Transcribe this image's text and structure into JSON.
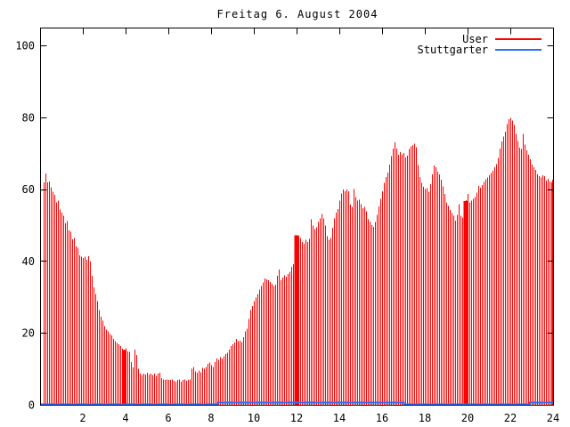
{
  "title": "Freitag 6. August 2004",
  "colors": {
    "background": "#ffffff",
    "axis": "#000000",
    "user": "#ff0000",
    "stuttgarter": "#2d6bff"
  },
  "legend": {
    "position": "top-right",
    "entries": [
      {
        "label": "User",
        "color": "#ff0000"
      },
      {
        "label": "Stuttgarter",
        "color": "#2d6bff"
      }
    ]
  },
  "chart_data": {
    "type": "bar",
    "title": "Freitag 6. August 2004",
    "xlabel": "",
    "ylabel": "",
    "xlim": [
      0,
      24
    ],
    "ylim": [
      0,
      105
    ],
    "xticks": [
      2,
      4,
      6,
      8,
      10,
      12,
      14,
      16,
      18,
      20,
      22,
      24
    ],
    "yticks": [
      0,
      20,
      40,
      60,
      80,
      100
    ],
    "grid": false,
    "x_interval_minutes": 5,
    "series": [
      {
        "name": "User",
        "color": "#ff0000",
        "style": "impulses",
        "values": [
          null,
          62,
          64.5,
          62,
          62.3,
          60.7,
          59.4,
          58.6,
          56.5,
          57,
          54.5,
          53.6,
          52.8,
          50.7,
          51.2,
          48.7,
          48.3,
          46.2,
          46.6,
          44.2,
          43.8,
          41.7,
          41.3,
          41,
          41.3,
          40.5,
          41.5,
          40,
          36,
          32.8,
          31,
          29,
          26.5,
          24.6,
          23.5,
          22,
          21.1,
          20.5,
          19.8,
          19.5,
          18.5,
          17.8,
          17.3,
          17,
          16.5,
          15.7,
          15.5,
          15.8,
          15,
          14.8,
          12,
          10.5,
          15.5,
          14,
          10.2,
          8.8,
          8.4,
          8.8,
          8.6,
          9,
          8.5,
          8.8,
          8.4,
          8.8,
          8.2,
          8.8,
          9,
          7.5,
          7.2,
          7,
          7.2,
          7,
          7,
          7.2,
          6.8,
          6.6,
          7,
          7.2,
          6.6,
          7,
          7.2,
          6.8,
          7,
          7.2,
          10.1,
          10.6,
          9.4,
          9,
          9.6,
          9.2,
          10.4,
          10.2,
          10.6,
          11.5,
          11.9,
          11.2,
          10.6,
          12,
          13,
          12.6,
          13.4,
          13,
          13.6,
          14.2,
          14.6,
          15.5,
          16.5,
          17,
          17.5,
          18.5,
          17.8,
          18,
          17.6,
          19,
          20.5,
          21.3,
          24,
          26.5,
          27.6,
          29,
          30,
          31,
          32.2,
          33.2,
          34.2,
          35.3,
          35,
          34.8,
          34.3,
          33.8,
          33.2,
          33.5,
          36,
          37.8,
          34.8,
          35.5,
          36.2,
          35.8,
          36.5,
          37.2,
          38.5,
          39.3,
          40.3,
          42,
          47,
          46.5,
          45.5,
          45,
          46,
          45.5,
          46.3,
          51.8,
          50,
          49,
          49.5,
          51,
          52,
          53.2,
          52,
          50,
          47,
          46,
          46.5,
          49.4,
          52,
          53.6,
          54.6,
          57,
          59,
          60,
          59.5,
          60,
          59.6,
          55.8,
          55.2,
          60.2,
          58,
          57,
          57.2,
          56,
          54.9,
          55.2,
          54,
          51.8,
          51,
          50.2,
          49.7,
          51,
          53,
          55.4,
          57.5,
          59.5,
          61.9,
          63.5,
          64.8,
          67,
          69.4,
          71.5,
          73.2,
          71.4,
          69.7,
          70.5,
          69.8,
          70.2,
          69,
          69.5,
          71.3,
          72.1,
          72.4,
          72.8,
          71.8,
          66.9,
          63.5,
          61.9,
          60.8,
          60.2,
          60.4,
          59.4,
          61.5,
          64.3,
          66.8,
          66.2,
          65,
          64.3,
          62.8,
          60.9,
          58.8,
          56.5,
          55.5,
          54.3,
          53.5,
          52.7,
          51.4,
          53,
          56,
          52.8,
          52.2,
          53.9,
          57.1,
          58.8,
          56.5,
          57,
          57.5,
          58,
          59.2,
          61.1,
          60.5,
          61.3,
          62.1,
          62.9,
          63.4,
          64,
          64.6,
          65.3,
          66.2,
          67.1,
          68.8,
          71.5,
          73.4,
          74.8,
          76.2,
          78.3,
          79.6,
          80,
          79.2,
          78,
          75.5,
          73.5,
          71.7,
          71.3,
          75.5,
          72.5,
          71,
          69.7,
          68.5,
          67,
          66.3,
          65.5,
          64.3,
          63.8,
          63.4,
          64,
          63.8,
          62.5,
          63,
          62.3,
          62,
          62.8
        ],
        "solid_columns": [
          {
            "hour": 3.92,
            "value": 15.3
          },
          {
            "hour": 11.98,
            "value": 47.3
          },
          {
            "hour": 19.9,
            "value": 56.8
          }
        ]
      },
      {
        "name": "Stuttgarter",
        "color": "#2d6bff",
        "style": "steps",
        "value_segments": [
          {
            "from": 0,
            "to": 8.3,
            "value": 0
          },
          {
            "from": 8.3,
            "to": 17.0,
            "value": 0.7
          },
          {
            "from": 17.0,
            "to": 22.9,
            "value": 0
          },
          {
            "from": 22.9,
            "to": 24,
            "value": 0.7
          }
        ]
      }
    ]
  }
}
